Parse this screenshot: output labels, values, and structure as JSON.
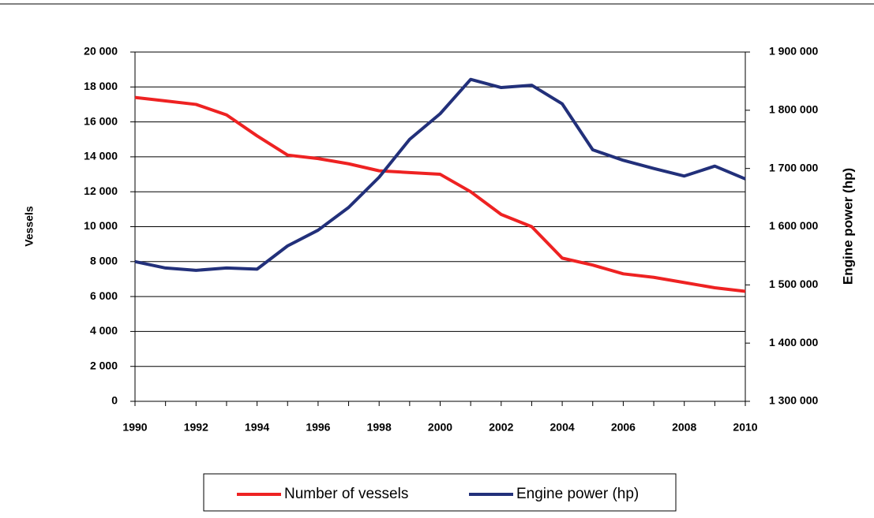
{
  "chart_data": {
    "type": "line",
    "y_label": "Vessels",
    "y2_label": "Engine power (hp)",
    "x": [
      1990,
      1991,
      1992,
      1993,
      1994,
      1995,
      1996,
      1997,
      1998,
      1999,
      2000,
      2001,
      2002,
      2003,
      2004,
      2005,
      2006,
      2007,
      2008,
      2009,
      2010
    ],
    "xlim": [
      1990,
      2010
    ],
    "xticks": [
      1990,
      1992,
      1994,
      1996,
      1998,
      2000,
      2002,
      2004,
      2006,
      2008,
      2010
    ],
    "ylim": [
      0,
      20000
    ],
    "yticks": [
      0,
      {
        "value": 2000,
        "label": "2 000"
      },
      {
        "value": 4000,
        "label": "4 000"
      },
      {
        "value": 6000,
        "label": "6 000"
      },
      {
        "value": 8000,
        "label": "8 000"
      },
      {
        "value": 10000,
        "label": "10 000"
      },
      {
        "value": 12000,
        "label": "12 000"
      },
      {
        "value": 14000,
        "label": "14 000"
      },
      {
        "value": 16000,
        "label": "16 000"
      },
      {
        "value": 18000,
        "label": "18 000"
      },
      {
        "value": 20000,
        "label": "20 000"
      }
    ],
    "y2lim": [
      1300000,
      1900000
    ],
    "y2ticks": [
      {
        "value": 1300000,
        "label": "1 300 000"
      },
      {
        "value": 1400000,
        "label": "1 400 000"
      },
      {
        "value": 1500000,
        "label": "1 500 000"
      },
      {
        "value": 1600000,
        "label": "1 600 000"
      },
      {
        "value": 1700000,
        "label": "1 700 000"
      },
      {
        "value": 1800000,
        "label": "1 800 000"
      },
      {
        "value": 1900000,
        "label": "1 900 000"
      }
    ],
    "grid": true,
    "legend": "bottom",
    "series": [
      {
        "name": "Number of vessels",
        "color": "#ee2222",
        "values": [
          17400,
          17200,
          17000,
          16400,
          15200,
          14100,
          13900,
          13600,
          13200,
          13100,
          13000,
          12000,
          10700,
          10000,
          8200,
          7800,
          7300,
          7100,
          6800,
          6500,
          6300
        ]
      },
      {
        "name": "Engine power (hp)",
        "color": "#22307a",
        "axis": "y2",
        "values": [
          1540000,
          1529000,
          1525000,
          1529000,
          1527000,
          1567000,
          1594000,
          1633000,
          1685000,
          1750000,
          1794000,
          1853000,
          1839000,
          1843000,
          1811000,
          1732000,
          1714000,
          1700000,
          1687000,
          1704000,
          1682000
        ]
      }
    ]
  }
}
